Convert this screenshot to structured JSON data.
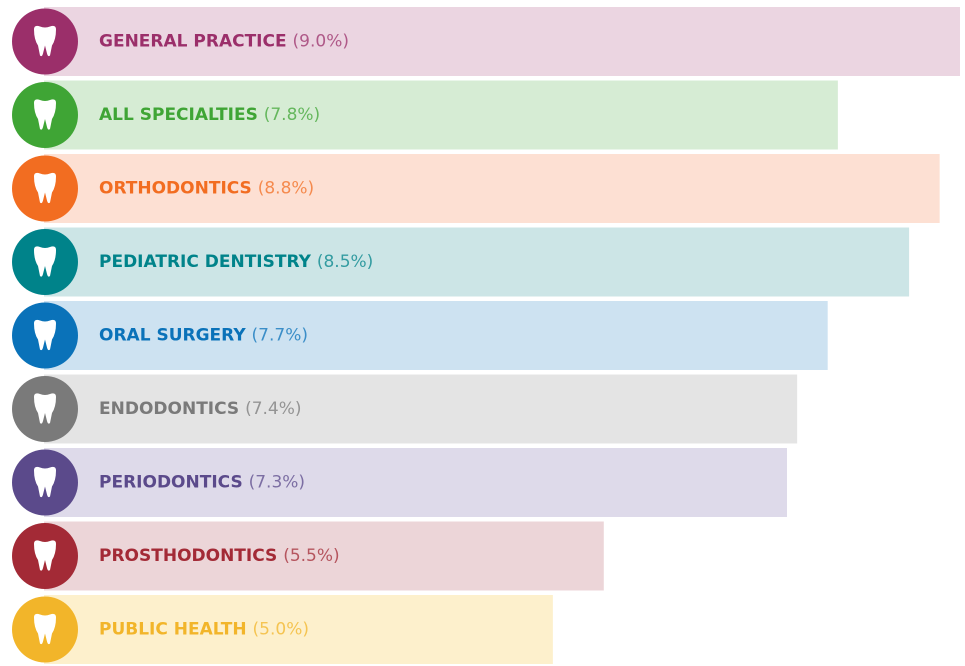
{
  "chart_data": {
    "type": "bar",
    "categories": [
      "GENERAL PRACTICE",
      "ALL SPECIALTIES",
      "ORTHODONTICS",
      "PEDIATRIC DENTISTRY",
      "ORAL SURGERY",
      "ENDODONTICS",
      "PERIODONTICS",
      "PROSTHODONTICS",
      "PUBLIC HEALTH"
    ],
    "values": [
      9.0,
      7.8,
      8.8,
      8.5,
      7.7,
      7.4,
      7.3,
      5.5,
      5.0
    ],
    "value_labels": [
      "(9.0%)",
      "(7.8%)",
      "(8.8%)",
      "(8.5%)",
      "(7.7%)",
      "(7.4%)",
      "(7.3%)",
      "(5.5%)",
      "(5.0%)"
    ],
    "colors": [
      "#9b2f6a",
      "#3fa535",
      "#f26d21",
      "#00838a",
      "#0a72b9",
      "#7a7a7a",
      "#5b4a8b",
      "#a32a36",
      "#f2b52a"
    ],
    "bar_colors": [
      "#ebd5e1",
      "#d6ecd4",
      "#fde0d3",
      "#cce5e6",
      "#cde2f1",
      "#e4e4e4",
      "#dedaea",
      "#ecd5d8",
      "#fdf0cc"
    ]
  }
}
